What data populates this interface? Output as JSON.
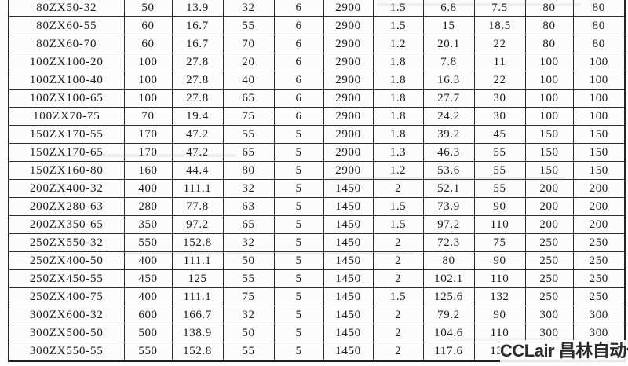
{
  "watermark": {
    "text": "CCLair 昌林自动化"
  },
  "table": {
    "description": "ZX self-priming pump specification table (no header row visible in screenshot)",
    "rows": [
      [
        "80ZX50-32",
        "50",
        "13.9",
        "32",
        "6",
        "2900",
        "1.5",
        "6.8",
        "7.5",
        "80",
        "80"
      ],
      [
        "80ZX60-55",
        "60",
        "16.7",
        "55",
        "6",
        "2900",
        "1.5",
        "15",
        "18.5",
        "80",
        "80"
      ],
      [
        "80ZX60-70",
        "60",
        "16.7",
        "70",
        "6",
        "2900",
        "1.2",
        "20.1",
        "22",
        "80",
        "80"
      ],
      [
        "100ZX100-20",
        "100",
        "27.8",
        "20",
        "6",
        "2900",
        "1.8",
        "7.8",
        "11",
        "100",
        "100"
      ],
      [
        "100ZX100-40",
        "100",
        "27.8",
        "40",
        "6",
        "2900",
        "1.8",
        "16.3",
        "22",
        "100",
        "100"
      ],
      [
        "100ZX100-65",
        "100",
        "27.8",
        "65",
        "6",
        "2900",
        "1.8",
        "27.7",
        "30",
        "100",
        "100"
      ],
      [
        "100ZX70-75",
        "70",
        "19.4",
        "75",
        "6",
        "2900",
        "1.8",
        "24.2",
        "30",
        "100",
        "100"
      ],
      [
        "150ZX170-55",
        "170",
        "47.2",
        "55",
        "5",
        "2900",
        "1.8",
        "39.2",
        "45",
        "150",
        "150"
      ],
      [
        "150ZX170-65",
        "170",
        "47.2",
        "65",
        "5",
        "2900",
        "1.3",
        "46.3",
        "55",
        "150",
        "150"
      ],
      [
        "150ZX160-80",
        "160",
        "44.4",
        "80",
        "5",
        "2900",
        "1.2",
        "53.6",
        "55",
        "150",
        "150"
      ],
      [
        "200ZX400-32",
        "400",
        "111.1",
        "32",
        "5",
        "1450",
        "2",
        "52.1",
        "55",
        "200",
        "200"
      ],
      [
        "200ZX280-63",
        "280",
        "77.8",
        "63",
        "5",
        "1450",
        "1.5",
        "73.9",
        "90",
        "200",
        "200"
      ],
      [
        "200ZX350-65",
        "350",
        "97.2",
        "65",
        "5",
        "1450",
        "1.5",
        "97.2",
        "110",
        "200",
        "200"
      ],
      [
        "250ZX550-32",
        "550",
        "152.8",
        "32",
        "5",
        "1450",
        "2",
        "72.3",
        "75",
        "250",
        "250"
      ],
      [
        "250ZX400-50",
        "400",
        "111.1",
        "50",
        "5",
        "1450",
        "2",
        "80",
        "90",
        "250",
        "250"
      ],
      [
        "250ZX450-55",
        "450",
        "125",
        "55",
        "5",
        "1450",
        "2",
        "102.1",
        "110",
        "250",
        "250"
      ],
      [
        "250ZX400-75",
        "400",
        "111.1",
        "75",
        "5",
        "1450",
        "1.5",
        "125.6",
        "132",
        "250",
        "250"
      ],
      [
        "300ZX600-32",
        "600",
        "166.7",
        "32",
        "5",
        "1450",
        "2",
        "79.2",
        "90",
        "300",
        "300"
      ],
      [
        "300ZX500-50",
        "500",
        "138.9",
        "50",
        "5",
        "1450",
        "2",
        "104.6",
        "110",
        "300",
        "300"
      ],
      [
        "300ZX550-55",
        "550",
        "152.8",
        "55",
        "5",
        "1450",
        "2",
        "117.6",
        "132",
        "",
        ""
      ]
    ]
  }
}
